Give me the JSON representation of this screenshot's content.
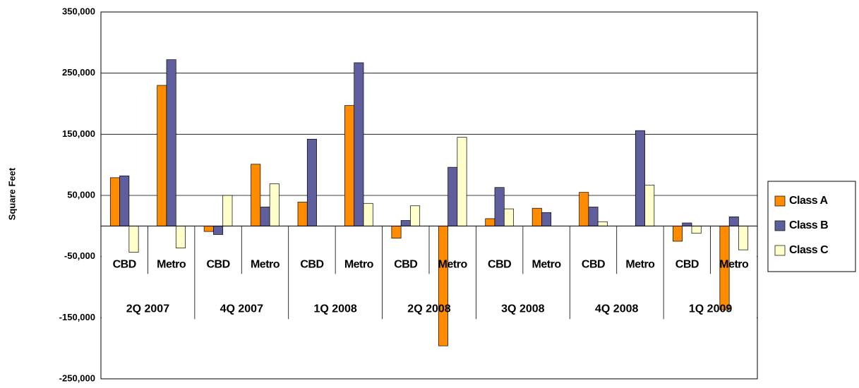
{
  "chart_data": {
    "type": "bar",
    "y_label": "Square Feet",
    "categories": [
      "CBD",
      "Metro",
      "CBD",
      "Metro",
      "CBD",
      "Metro",
      "CBD",
      "Metro",
      "CBD",
      "Metro",
      "CBD",
      "Metro",
      "CBD",
      "Metro"
    ],
    "groups": [
      "2Q 2007",
      "4Q 2007",
      "1Q 2008",
      "2Q 2008",
      "3Q 2008",
      "4Q 2008",
      "1Q 2009"
    ],
    "series": [
      {
        "name": "Class A",
        "color": "#FF8C00",
        "values": [
          79000,
          230000,
          -9000,
          101000,
          39000,
          197000,
          -20000,
          -196000,
          12000,
          29000,
          55000,
          0,
          -25000,
          -137000
        ]
      },
      {
        "name": "Class B",
        "color": "#5F5F9E",
        "values": [
          82000,
          272000,
          -14000,
          31000,
          142000,
          267000,
          9000,
          96000,
          63000,
          22000,
          31000,
          156000,
          5000,
          15000
        ]
      },
      {
        "name": "Class C",
        "color": "#FFFFCC",
        "values": [
          -43000,
          -36000,
          50000,
          69000,
          0,
          37000,
          33000,
          145000,
          28000,
          0,
          7000,
          67000,
          -12000,
          -39000
        ]
      }
    ],
    "ylim": [
      -250000,
      350000
    ],
    "yticks": [
      {
        "value": 350000,
        "label": "350,000"
      },
      {
        "value": 250000,
        "label": "250,000"
      },
      {
        "value": 150000,
        "label": "150,000"
      },
      {
        "value": 50000,
        "label": "50,000"
      },
      {
        "value": -50000,
        "label": "-50,000"
      },
      {
        "value": -150000,
        "label": "-150,000"
      },
      {
        "value": -250000,
        "label": "-250,000"
      }
    ],
    "grid": true,
    "legend": "right"
  }
}
